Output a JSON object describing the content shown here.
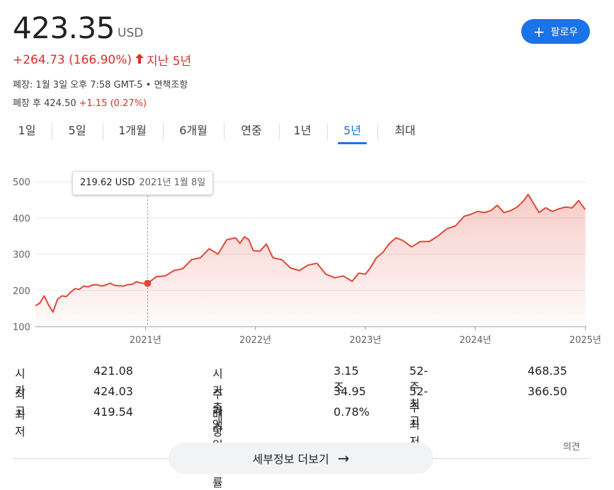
{
  "header": {
    "price": "423.35",
    "currency": "USD",
    "change": "+264.73 (166.90%)",
    "change_arrow": "🠕",
    "period": "지난 5년",
    "meta": "폐장: 1월 3일 오후 7:58 GMT-5 • 면책조항",
    "after_label": "폐장 후 424.50",
    "after_change": "+1.15 (0.27%)",
    "follow_label": "팔로우",
    "follow_icon": "plus-icon"
  },
  "tabs": [
    "1일",
    "5일",
    "1개월",
    "6개월",
    "연중",
    "1년",
    "5년",
    "최대"
  ],
  "active_tab": "5년",
  "tooltip": {
    "value": "219.62 USD",
    "date": "2021년 1월 8일"
  },
  "chart_data": {
    "type": "line",
    "xlabels": [
      "2021년",
      "2022년",
      "2023년",
      "2024년",
      "2025년"
    ],
    "xlim": [
      2020.0,
      2025.01
    ],
    "ylim": [
      100,
      500
    ],
    "yticks": [
      100,
      200,
      300,
      400,
      500
    ],
    "grid": true,
    "line_color": "#e04837",
    "highlight": {
      "x": 2021.02,
      "y": 219.62
    },
    "series": [
      {
        "x": [
          2020.0,
          2020.04,
          2020.08,
          2020.12,
          2020.16,
          2020.2,
          2020.24,
          2020.28,
          2020.32,
          2020.36,
          2020.4,
          2020.44,
          2020.48,
          2020.52,
          2020.56,
          2020.6,
          2020.64,
          2020.68,
          2020.72,
          2020.76,
          2020.8,
          2020.84,
          2020.88,
          2020.92,
          2020.96,
          2021.02,
          2021.1,
          2021.18,
          2021.26,
          2021.34,
          2021.42,
          2021.5,
          2021.58,
          2021.66,
          2021.74,
          2021.82,
          2021.86,
          2021.9,
          2021.94,
          2021.98,
          2022.04,
          2022.1,
          2022.16,
          2022.24,
          2022.32,
          2022.4,
          2022.48,
          2022.56,
          2022.64,
          2022.72,
          2022.8,
          2022.88,
          2022.94,
          2023.0,
          2023.04,
          2023.1,
          2023.16,
          2023.22,
          2023.28,
          2023.34,
          2023.42,
          2023.5,
          2023.58,
          2023.66,
          2023.74,
          2023.82,
          2023.9,
          2023.96,
          2024.02,
          2024.08,
          2024.14,
          2024.2,
          2024.26,
          2024.32,
          2024.38,
          2024.44,
          2024.48,
          2024.52,
          2024.58,
          2024.64,
          2024.7,
          2024.76,
          2024.82,
          2024.88,
          2024.94,
          2025.0
        ],
        "y": [
          158,
          165,
          185,
          160,
          140,
          175,
          185,
          183,
          195,
          205,
          203,
          212,
          210,
          215,
          216,
          212,
          215,
          220,
          214,
          213,
          212,
          216,
          217,
          224,
          220,
          219.62,
          238,
          240,
          255,
          260,
          285,
          290,
          315,
          300,
          340,
          345,
          330,
          348,
          340,
          310,
          308,
          328,
          290,
          285,
          262,
          255,
          270,
          275,
          245,
          235,
          240,
          225,
          248,
          245,
          260,
          290,
          305,
          330,
          345,
          338,
          320,
          335,
          335,
          350,
          370,
          378,
          405,
          410,
          418,
          415,
          420,
          435,
          415,
          420,
          430,
          448,
          465,
          445,
          415,
          428,
          418,
          425,
          430,
          428,
          448,
          423.35
        ]
      }
    ]
  },
  "stats": {
    "col1": [
      {
        "label": "시가",
        "value": "421.08"
      },
      {
        "label": "최고",
        "value": "424.03"
      },
      {
        "label": "최저",
        "value": "419.54"
      }
    ],
    "col2": [
      {
        "label": "시가총액",
        "value": "3.15조"
      },
      {
        "label": "주가수익률",
        "value": "34.95"
      },
      {
        "label": "배당수익률",
        "value": "0.78%"
      }
    ],
    "col3": [
      {
        "label": "52-주 최고",
        "value": "468.35"
      },
      {
        "label": "52-주 최저",
        "value": "366.50"
      }
    ]
  },
  "more_button": "세부정보 더보기",
  "more_arrow": "→",
  "feedback": "의견"
}
